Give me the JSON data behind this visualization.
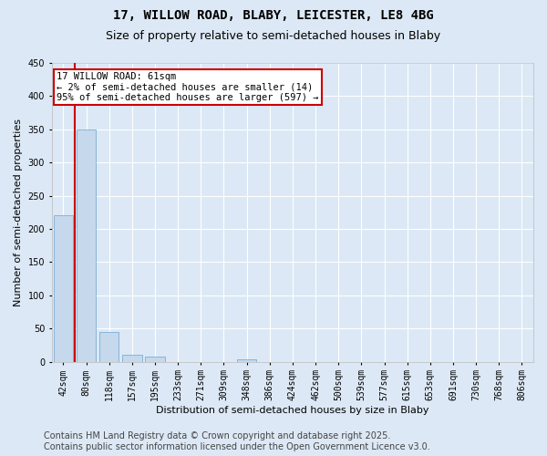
{
  "title1": "17, WILLOW ROAD, BLABY, LEICESTER, LE8 4BG",
  "title2": "Size of property relative to semi-detached houses in Blaby",
  "xlabel": "Distribution of semi-detached houses by size in Blaby",
  "ylabel": "Number of semi-detached properties",
  "categories": [
    "42sqm",
    "80sqm",
    "118sqm",
    "157sqm",
    "195sqm",
    "233sqm",
    "271sqm",
    "309sqm",
    "348sqm",
    "386sqm",
    "424sqm",
    "462sqm",
    "500sqm",
    "539sqm",
    "577sqm",
    "615sqm",
    "653sqm",
    "691sqm",
    "730sqm",
    "768sqm",
    "806sqm"
  ],
  "values": [
    220,
    350,
    45,
    10,
    7,
    0,
    0,
    0,
    3,
    0,
    0,
    0,
    0,
    0,
    0,
    0,
    0,
    0,
    0,
    0,
    0
  ],
  "bar_color": "#c5d8ec",
  "bar_edge_color": "#7aafd4",
  "red_line_x": 0.5,
  "ylim": [
    0,
    450
  ],
  "yticks": [
    0,
    50,
    100,
    150,
    200,
    250,
    300,
    350,
    400,
    450
  ],
  "annotation_title": "17 WILLOW ROAD: 61sqm",
  "annotation_line1": "← 2% of semi-detached houses are smaller (14)",
  "annotation_line2": "95% of semi-detached houses are larger (597) →",
  "annotation_box_color": "#ffffff",
  "annotation_box_edge_color": "#cc0000",
  "footer_line1": "Contains HM Land Registry data © Crown copyright and database right 2025.",
  "footer_line2": "Contains public sector information licensed under the Open Government Licence v3.0.",
  "background_color": "#dce8f5",
  "plot_background_color": "#dce8f5",
  "grid_color": "#ffffff",
  "title1_fontsize": 10,
  "title2_fontsize": 9,
  "footer_fontsize": 7,
  "tick_fontsize": 7,
  "ylabel_fontsize": 8,
  "xlabel_fontsize": 8
}
